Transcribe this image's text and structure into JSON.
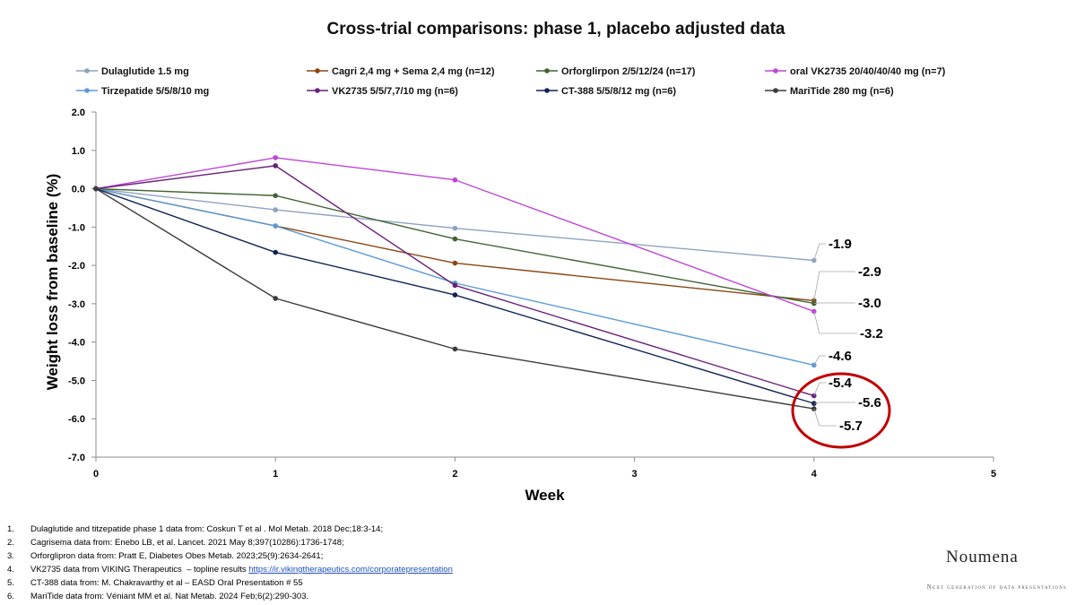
{
  "title": "Cross-trial comparisons: phase 1, placebo adjusted data",
  "chart_data": {
    "type": "line",
    "xlabel": "Week",
    "ylabel": "Weight loss from baseline (%)",
    "xlim": [
      0,
      5
    ],
    "ylim": [
      -7,
      2
    ],
    "x_ticks": [
      "0",
      "1",
      "2",
      "3",
      "4",
      "5"
    ],
    "y_ticks": [
      "2.0",
      "1.0",
      "0.0",
      "-1.0",
      "-2.0",
      "-3.0",
      "-4.0",
      "-5.0",
      "-6.0",
      "-7.0"
    ],
    "grid": false,
    "legend_position": "top",
    "series": [
      {
        "name": "Dulaglutide 1.5 mg",
        "color": "#8ea3c0",
        "x": [
          0,
          1,
          2,
          4
        ],
        "values": [
          0,
          -0.55,
          -1.03,
          -1.87
        ],
        "end_label": "-1.9"
      },
      {
        "name": "Cagri 2,4 mg + Sema 2,4 mg (n=12)",
        "color": "#8b4513",
        "x": [
          0,
          1,
          2,
          4
        ],
        "values": [
          0,
          -0.97,
          -1.94,
          -2.92
        ],
        "end_label": "-2.9"
      },
      {
        "name": "Orforglirpon 2/5/12/24 (n=17)",
        "color": "#3f6430",
        "x": [
          0,
          1,
          2,
          4
        ],
        "values": [
          0,
          -0.18,
          -1.31,
          -2.99
        ],
        "end_label": "-3.0"
      },
      {
        "name": "oral VK2735 20/40/40/40 mg (n=7)",
        "color": "#bf45d6",
        "x": [
          0,
          1,
          2,
          4
        ],
        "values": [
          0,
          0.81,
          0.23,
          -3.2
        ],
        "end_label": "-3.2"
      },
      {
        "name": "Tirzepatide 5/5/8/10 mg",
        "color": "#5b9bd5",
        "x": [
          0,
          1,
          2,
          4
        ],
        "values": [
          0,
          -0.97,
          -2.46,
          -4.6
        ],
        "end_label": "-4.6"
      },
      {
        "name": "VK2735 5/5/7,7/10 mg (n=6)",
        "color": "#6a1f7a",
        "x": [
          0,
          1,
          2,
          4
        ],
        "values": [
          0,
          0.6,
          -2.52,
          -5.4
        ],
        "end_label": "-5.4"
      },
      {
        "name": "CT-388 5/5/8/12 mg (n=6)",
        "color": "#0e2355",
        "x": [
          0,
          1,
          2,
          4
        ],
        "values": [
          0,
          -1.66,
          -2.77,
          -5.6
        ],
        "end_label": "-5.6"
      },
      {
        "name": "MariTide 280 mg (n=6)",
        "color": "#3b3b3b",
        "x": [
          0,
          1,
          2,
          4
        ],
        "values": [
          0,
          -2.86,
          -4.18,
          -5.74
        ],
        "end_label": "-5.7"
      }
    ],
    "highlight_color": "#c00000"
  },
  "footnotes": [
    {
      "num": "1.",
      "text": "Dulaglutide and titzepatide phase 1 data from: Coskun T et al . Mol Metab. 2018 Dec;18:3-14;",
      "link": ""
    },
    {
      "num": "2.",
      "text": "Cagrisema data from: Enebo LB, et al. Lancet. 2021 May 8;397(10286):1736-1748;",
      "link": ""
    },
    {
      "num": "3.",
      "text": "Orforglipron data from: Pratt E, Diabetes Obes Metab. 2023;25(9):2634-2641;",
      "link": ""
    },
    {
      "num": "4.",
      "text": "VK2735 data from VIKING Therapeutics  – topline results ",
      "link": "https://ir.vikingtherapeutics.com/corporatepresentation"
    },
    {
      "num": "5.",
      "text": "CT-388 data from: M. Chakravarthy et al – EASD Oral Presentation # 55",
      "link": ""
    },
    {
      "num": "6.",
      "text": "MariTide data from: Véniant MM et al. Nat Metab. 2024 Feb;6(2):290-303.",
      "link": ""
    }
  ],
  "brand": {
    "name": "Noumena",
    "tagline": "Next generation of data presentations"
  }
}
